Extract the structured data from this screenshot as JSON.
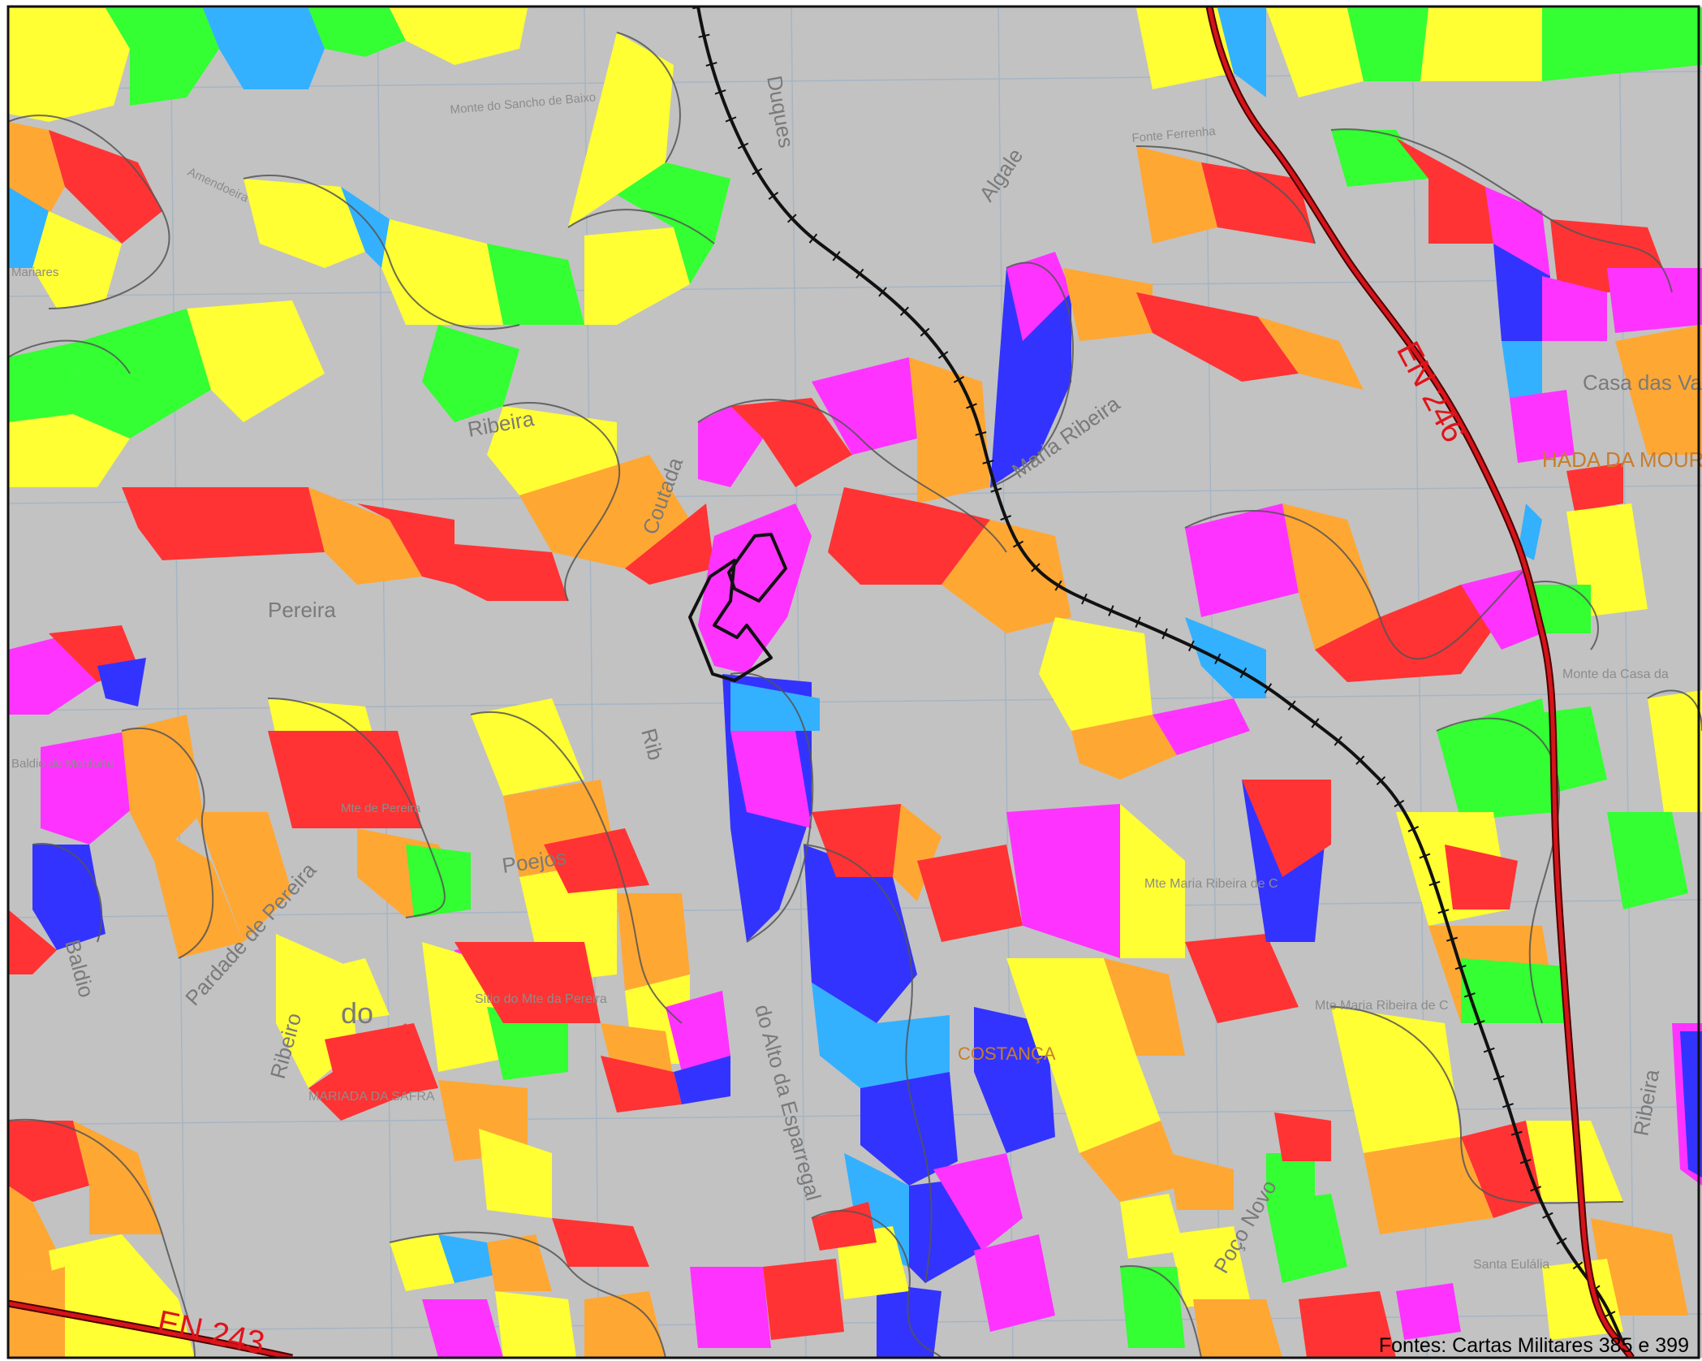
{
  "map": {
    "source_note": "Fontes: Cartas Militares 385 e 399",
    "roads": {
      "en246": "EN 246",
      "en243": "EN 243"
    },
    "place_labels": {
      "monte_sancho": "Monte do Sancho de Baixo",
      "fonte_ferrenha": "Fonte Ferrenha",
      "mariares": "Mariares",
      "amendoeira": "Amendoeira",
      "algale": "Algale",
      "duques": "Duques",
      "ribeira": "Ribeira",
      "pereira": "Pereira",
      "coutada": "Coutada",
      "maria_ribeira": "Maria Ribeira",
      "casa_das_vacas": "Casa das Va",
      "chada_mourata": "HADA DA MOURAT",
      "monte_casa": "Monte da Casa da",
      "baldio_monforte": "Baldio de Monforte",
      "mte_pereira": "Mte de Pereira",
      "poejos": "Poejos",
      "sitio_pereira": "Sitio do Mte da Pereira",
      "pardade": "Pardade de Pereira",
      "baldio": "Baldio",
      "ribeiro": "Ribeiro",
      "sa_safira": "MARIADA DA SAFRA",
      "do": "do",
      "alto_esparregal": "do Alto da Esparregal",
      "costanca": "COSTANÇA",
      "mte_maria_ribeira": "Mte Maria Ribeira de C",
      "mte_maria_ribeira_2": "Mte Maria Ribeira de C",
      "rib": "Rib",
      "poco_novo": "Poço Novo",
      "santa_eulalia": "Santa Eulália",
      "ribeira_right": "Ribeira"
    },
    "colors": {
      "background": "#c2c2c2",
      "contour": "#555555",
      "grid": "#9fb2c4",
      "road": "#d4141a",
      "railway": "#111111",
      "outline": "#111111",
      "yellow": "#ffff33",
      "orange": "#ffa733",
      "red": "#ff3333",
      "magenta": "#ff33ff",
      "blue": "#3333ff",
      "cyan": "#33b1ff",
      "green": "#33ff33"
    }
  }
}
